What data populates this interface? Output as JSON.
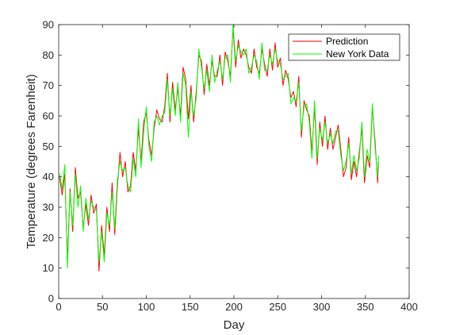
{
  "chart_data": {
    "type": "line",
    "xlabel": "Day",
    "ylabel": "Temperature (degrees Farenheit)",
    "xlim": [
      0,
      400
    ],
    "ylim": [
      0,
      90
    ],
    "xticks": [
      0,
      50,
      100,
      150,
      200,
      250,
      300,
      350,
      400
    ],
    "yticks": [
      0,
      10,
      20,
      30,
      40,
      50,
      60,
      70,
      80,
      90
    ],
    "grid": false,
    "legend_position": "top-right",
    "x": [
      1,
      4,
      7,
      10,
      13,
      16,
      19,
      22,
      25,
      28,
      31,
      34,
      37,
      40,
      43,
      46,
      49,
      52,
      55,
      58,
      61,
      64,
      67,
      70,
      73,
      76,
      79,
      82,
      85,
      88,
      91,
      94,
      97,
      100,
      103,
      106,
      109,
      112,
      115,
      118,
      121,
      124,
      127,
      130,
      133,
      136,
      139,
      142,
      145,
      148,
      151,
      154,
      157,
      160,
      163,
      166,
      169,
      172,
      175,
      178,
      181,
      184,
      187,
      190,
      193,
      196,
      199,
      202,
      205,
      208,
      211,
      214,
      217,
      220,
      223,
      226,
      229,
      232,
      235,
      238,
      241,
      244,
      247,
      250,
      253,
      256,
      259,
      262,
      265,
      268,
      271,
      274,
      277,
      280,
      283,
      286,
      289,
      292,
      295,
      298,
      301,
      304,
      307,
      310,
      313,
      316,
      319,
      322,
      325,
      328,
      331,
      334,
      337,
      340,
      343,
      346,
      349,
      352,
      355,
      358,
      361,
      364,
      365
    ],
    "series": [
      {
        "name": "Prediction",
        "color": "#ff0000",
        "values": [
          40,
          34,
          41,
          12,
          36,
          22,
          43,
          33,
          35,
          23,
          31,
          24,
          34,
          28,
          31,
          9,
          24,
          14,
          30,
          22,
          38,
          21,
          37,
          48,
          40,
          45,
          35,
          37,
          48,
          42,
          56,
          45,
          58,
          61,
          52,
          47,
          56,
          62,
          59,
          58,
          63,
          74,
          58,
          71,
          62,
          69,
          60,
          76,
          72,
          59,
          70,
          58,
          68,
          80,
          78,
          67,
          77,
          70,
          78,
          73,
          73,
          80,
          70,
          81,
          78,
          73,
          89,
          76,
          85,
          79,
          82,
          80,
          76,
          74,
          82,
          76,
          74,
          82,
          77,
          73,
          82,
          75,
          84,
          76,
          79,
          70,
          75,
          72,
          66,
          68,
          63,
          73,
          53,
          65,
          62,
          60,
          48,
          63,
          44,
          58,
          50,
          60,
          49,
          56,
          49,
          53,
          57,
          49,
          40,
          43,
          53,
          39,
          45,
          40,
          48,
          56,
          38,
          47,
          43,
          63,
          52,
          38,
          45
        ]
      },
      {
        "name": "New York Data",
        "color": "#00ff00",
        "values": [
          41,
          36,
          44,
          10,
          35,
          24,
          41,
          30,
          37,
          22,
          33,
          26,
          32,
          30,
          29,
          12,
          22,
          12,
          28,
          24,
          35,
          23,
          39,
          45,
          42,
          43,
          37,
          35,
          46,
          40,
          59,
          43,
          55,
          63,
          50,
          45,
          58,
          60,
          57,
          60,
          61,
          72,
          60,
          69,
          60,
          71,
          58,
          74,
          70,
          53,
          68,
          60,
          66,
          82,
          76,
          69,
          75,
          68,
          80,
          71,
          75,
          78,
          72,
          79,
          80,
          71,
          90,
          78,
          83,
          81,
          80,
          82,
          74,
          76,
          80,
          78,
          72,
          84,
          75,
          75,
          80,
          77,
          82,
          78,
          77,
          72,
          73,
          74,
          64,
          66,
          65,
          71,
          55,
          63,
          64,
          58,
          46,
          65,
          46,
          56,
          52,
          58,
          51,
          54,
          51,
          55,
          55,
          47,
          42,
          45,
          51,
          41,
          47,
          42,
          46,
          58,
          40,
          49,
          45,
          64,
          50,
          40,
          47
        ]
      }
    ]
  }
}
